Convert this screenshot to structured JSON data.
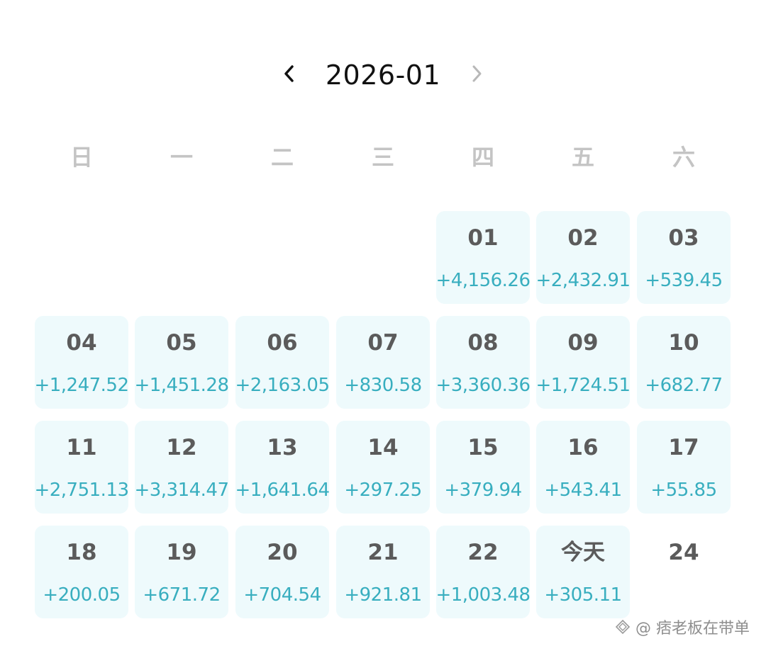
{
  "header": {
    "title": "2026-01",
    "prev_icon": "chevron-left-icon",
    "next_icon": "chevron-right-icon"
  },
  "weekdays": [
    "日",
    "一",
    "二",
    "三",
    "四",
    "五",
    "六"
  ],
  "days": [
    {
      "label": "01",
      "amount": "+4,156.26"
    },
    {
      "label": "02",
      "amount": "+2,432.91"
    },
    {
      "label": "03",
      "amount": "+539.45"
    },
    {
      "label": "04",
      "amount": "+1,247.52"
    },
    {
      "label": "05",
      "amount": "+1,451.28"
    },
    {
      "label": "06",
      "amount": "+2,163.05"
    },
    {
      "label": "07",
      "amount": "+830.58"
    },
    {
      "label": "08",
      "amount": "+3,360.36"
    },
    {
      "label": "09",
      "amount": "+1,724.51"
    },
    {
      "label": "10",
      "amount": "+682.77"
    },
    {
      "label": "11",
      "amount": "+2,751.13"
    },
    {
      "label": "12",
      "amount": "+3,314.47"
    },
    {
      "label": "13",
      "amount": "+1,641.64"
    },
    {
      "label": "14",
      "amount": "+297.25"
    },
    {
      "label": "15",
      "amount": "+379.94"
    },
    {
      "label": "16",
      "amount": "+543.41"
    },
    {
      "label": "17",
      "amount": "+55.85"
    },
    {
      "label": "18",
      "amount": "+200.05"
    },
    {
      "label": "19",
      "amount": "+671.72"
    },
    {
      "label": "20",
      "amount": "+704.54"
    },
    {
      "label": "21",
      "amount": "+921.81"
    },
    {
      "label": "22",
      "amount": "+1,003.48"
    },
    {
      "label": "今天",
      "amount": "+305.11"
    },
    {
      "label": "24",
      "amount": ""
    }
  ],
  "watermark": {
    "text": "@ 痞老板在带单"
  },
  "colors": {
    "cell_bg": "#eefafc",
    "amount": "#38aebf",
    "day_text": "#5b5b5b",
    "weekday_text": "#c4c4c4",
    "title_text": "#111111"
  }
}
